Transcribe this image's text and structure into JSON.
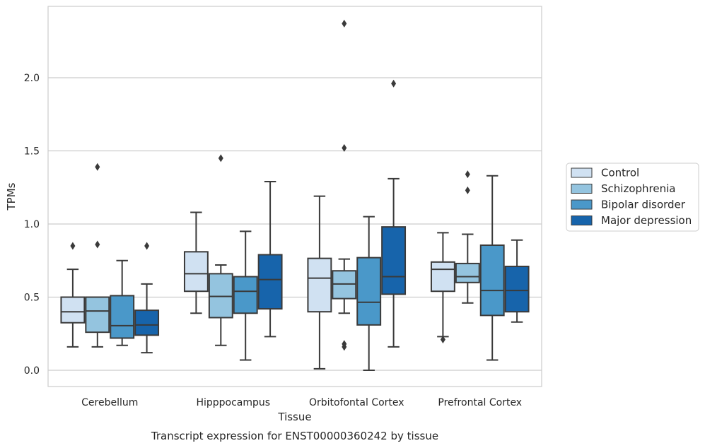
{
  "chart_data": {
    "type": "box",
    "title": "",
    "caption": "Transcript expression for ENST00000360242 by tissue",
    "xlabel": "Tissue",
    "ylabel": "TPMs",
    "ylim": [
      -0.11,
      2.5
    ],
    "yticks": [
      0.0,
      0.5,
      1.0,
      1.5,
      2.0
    ],
    "ytick_labels": [
      "0.0",
      "0.5",
      "1.0",
      "1.5",
      "2.0"
    ],
    "grid": "horizontal",
    "legend_position": "right",
    "categories": [
      "Cerebellum",
      "Hipppocampus",
      "Orbitofontal Cortex",
      "Prefrontal Cortex"
    ],
    "series": [
      {
        "name": "Control",
        "color": "#d0e1f2",
        "boxes": [
          {
            "whislo": 0.16,
            "q1": 0.325,
            "med": 0.4,
            "q3": 0.5,
            "whishi": 0.69,
            "fliers": [
              0.85
            ]
          },
          {
            "whislo": 0.39,
            "q1": 0.54,
            "med": 0.66,
            "q3": 0.81,
            "whishi": 1.08,
            "fliers": []
          },
          {
            "whislo": 0.01,
            "q1": 0.4,
            "med": 0.63,
            "q3": 0.765,
            "whishi": 1.19,
            "fliers": []
          },
          {
            "whislo": 0.23,
            "q1": 0.54,
            "med": 0.69,
            "q3": 0.74,
            "whishi": 0.94,
            "fliers": [
              0.21
            ]
          }
        ]
      },
      {
        "name": "Schizophrenia",
        "color": "#94c4df",
        "boxes": [
          {
            "whislo": 0.16,
            "q1": 0.26,
            "med": 0.405,
            "q3": 0.5,
            "whishi": 0.5,
            "fliers": [
              0.86,
              1.39
            ]
          },
          {
            "whislo": 0.17,
            "q1": 0.36,
            "med": 0.505,
            "q3": 0.66,
            "whishi": 0.72,
            "fliers": [
              1.45
            ]
          },
          {
            "whislo": 0.39,
            "q1": 0.49,
            "med": 0.59,
            "q3": 0.68,
            "whishi": 0.76,
            "fliers": [
              0.18,
              0.16,
              1.52,
              2.37
            ]
          },
          {
            "whislo": 0.46,
            "q1": 0.6,
            "med": 0.64,
            "q3": 0.73,
            "whishi": 0.93,
            "fliers": [
              1.23,
              1.34
            ]
          }
        ]
      },
      {
        "name": "Bipolar disorder",
        "color": "#4a98c9",
        "boxes": [
          {
            "whislo": 0.17,
            "q1": 0.22,
            "med": 0.305,
            "q3": 0.51,
            "whishi": 0.75,
            "fliers": []
          },
          {
            "whislo": 0.07,
            "q1": 0.39,
            "med": 0.54,
            "q3": 0.64,
            "whishi": 0.95,
            "fliers": []
          },
          {
            "whislo": 0.0,
            "q1": 0.31,
            "med": 0.465,
            "q3": 0.77,
            "whishi": 1.05,
            "fliers": []
          },
          {
            "whislo": 0.07,
            "q1": 0.375,
            "med": 0.545,
            "q3": 0.855,
            "whishi": 1.33,
            "fliers": []
          }
        ]
      },
      {
        "name": "Major depression",
        "color": "#1764ab",
        "boxes": [
          {
            "whislo": 0.12,
            "q1": 0.24,
            "med": 0.31,
            "q3": 0.41,
            "whishi": 0.59,
            "fliers": [
              0.85
            ]
          },
          {
            "whislo": 0.23,
            "q1": 0.42,
            "med": 0.62,
            "q3": 0.79,
            "whishi": 1.29,
            "fliers": []
          },
          {
            "whislo": 0.16,
            "q1": 0.52,
            "med": 0.64,
            "q3": 0.98,
            "whishi": 1.31,
            "fliers": [
              1.96
            ]
          },
          {
            "whislo": 0.33,
            "q1": 0.4,
            "med": 0.545,
            "q3": 0.71,
            "whishi": 0.89,
            "fliers": []
          }
        ]
      }
    ]
  }
}
